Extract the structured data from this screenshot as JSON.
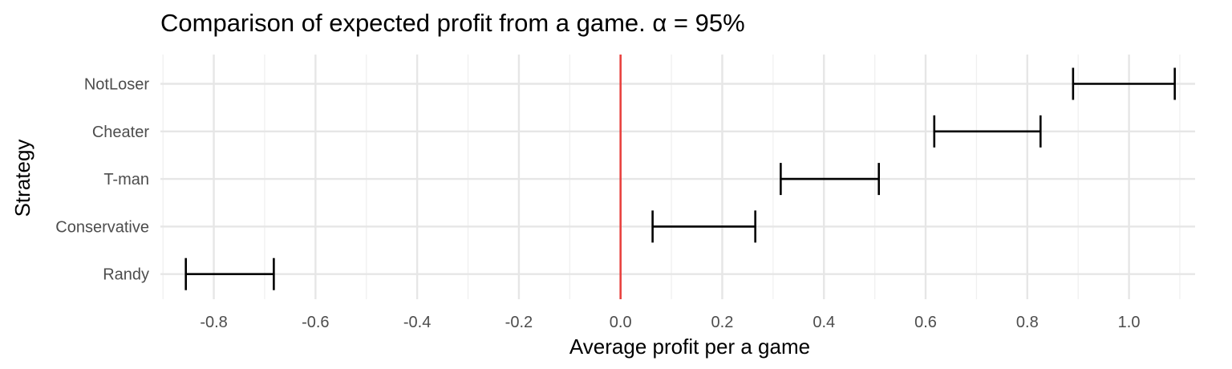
{
  "chart_data": {
    "type": "errorbar",
    "title": "Comparison of expected profit from a game. α = 95%",
    "xlabel": "Average profit per a game",
    "ylabel": "Strategy",
    "xlim": [
      -0.905,
      1.13
    ],
    "x_ticks": [
      -0.8,
      -0.6,
      -0.4,
      -0.2,
      0.0,
      0.2,
      0.4,
      0.6,
      0.8,
      1.0
    ],
    "x_tick_labels": [
      "-0.8",
      "-0.6",
      "-0.4",
      "-0.2",
      "0.0",
      "0.2",
      "0.4",
      "0.6",
      "0.8",
      "1.0"
    ],
    "categories": [
      "NotLoser",
      "Cheater",
      "T-man",
      "Conservative",
      "Randy"
    ],
    "intervals": [
      {
        "category": "NotLoser",
        "low": 0.89,
        "high": 1.09
      },
      {
        "category": "Cheater",
        "low": 0.617,
        "high": 0.826
      },
      {
        "category": "T-man",
        "low": 0.315,
        "high": 0.508
      },
      {
        "category": "Conservative",
        "low": 0.063,
        "high": 0.265
      },
      {
        "category": "Randy",
        "low": -0.855,
        "high": -0.682
      }
    ],
    "reference_line": {
      "x": 0.0,
      "color": "#e8423f"
    },
    "grid": true,
    "legend": "none"
  }
}
